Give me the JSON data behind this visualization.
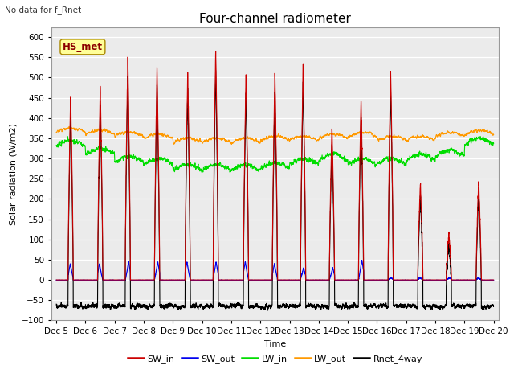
{
  "title": "Four-channel radiometer",
  "top_left_text": "No data for f_Rnet",
  "station_label": "HS_met",
  "ylabel": "Solar radiation (W/m2)",
  "xlabel": "Time",
  "xlim_days": [
    4.83,
    20.17
  ],
  "ylim": [
    -100,
    625
  ],
  "yticks": [
    -100,
    -50,
    0,
    50,
    100,
    150,
    200,
    250,
    300,
    350,
    400,
    450,
    500,
    550,
    600
  ],
  "xtick_labels": [
    "Dec 5",
    "Dec 6",
    "Dec 7",
    "Dec 8",
    "Dec 9",
    "Dec 10",
    "Dec 11",
    "Dec 12",
    "Dec 13",
    "Dec 14",
    "Dec 15",
    "Dec 16",
    "Dec 17",
    "Dec 18",
    "Dec 19",
    "Dec 20"
  ],
  "xtick_positions": [
    5,
    6,
    7,
    8,
    9,
    10,
    11,
    12,
    13,
    14,
    15,
    16,
    17,
    18,
    19,
    20
  ],
  "colors": {
    "SW_in": "#cc0000",
    "SW_out": "#0000ee",
    "LW_in": "#00dd00",
    "LW_out": "#ff9900",
    "Rnet_4way": "#000000"
  },
  "bg_color": "#ebebeb",
  "grid_color": "#ffffff",
  "num_days": 15,
  "points_per_day": 288,
  "day_peaks_SW_in": [
    460,
    480,
    555,
    525,
    515,
    570,
    510,
    515,
    530,
    380,
    450,
    520,
    240,
    115,
    245
  ],
  "day_peaks_SW_out": [
    40,
    40,
    45,
    45,
    45,
    45,
    45,
    40,
    30,
    30,
    50,
    5,
    5,
    5,
    5
  ],
  "title_fontsize": 11,
  "label_fontsize": 8,
  "tick_fontsize": 7.5,
  "fig_width": 6.4,
  "fig_height": 4.8,
  "dpi": 100
}
